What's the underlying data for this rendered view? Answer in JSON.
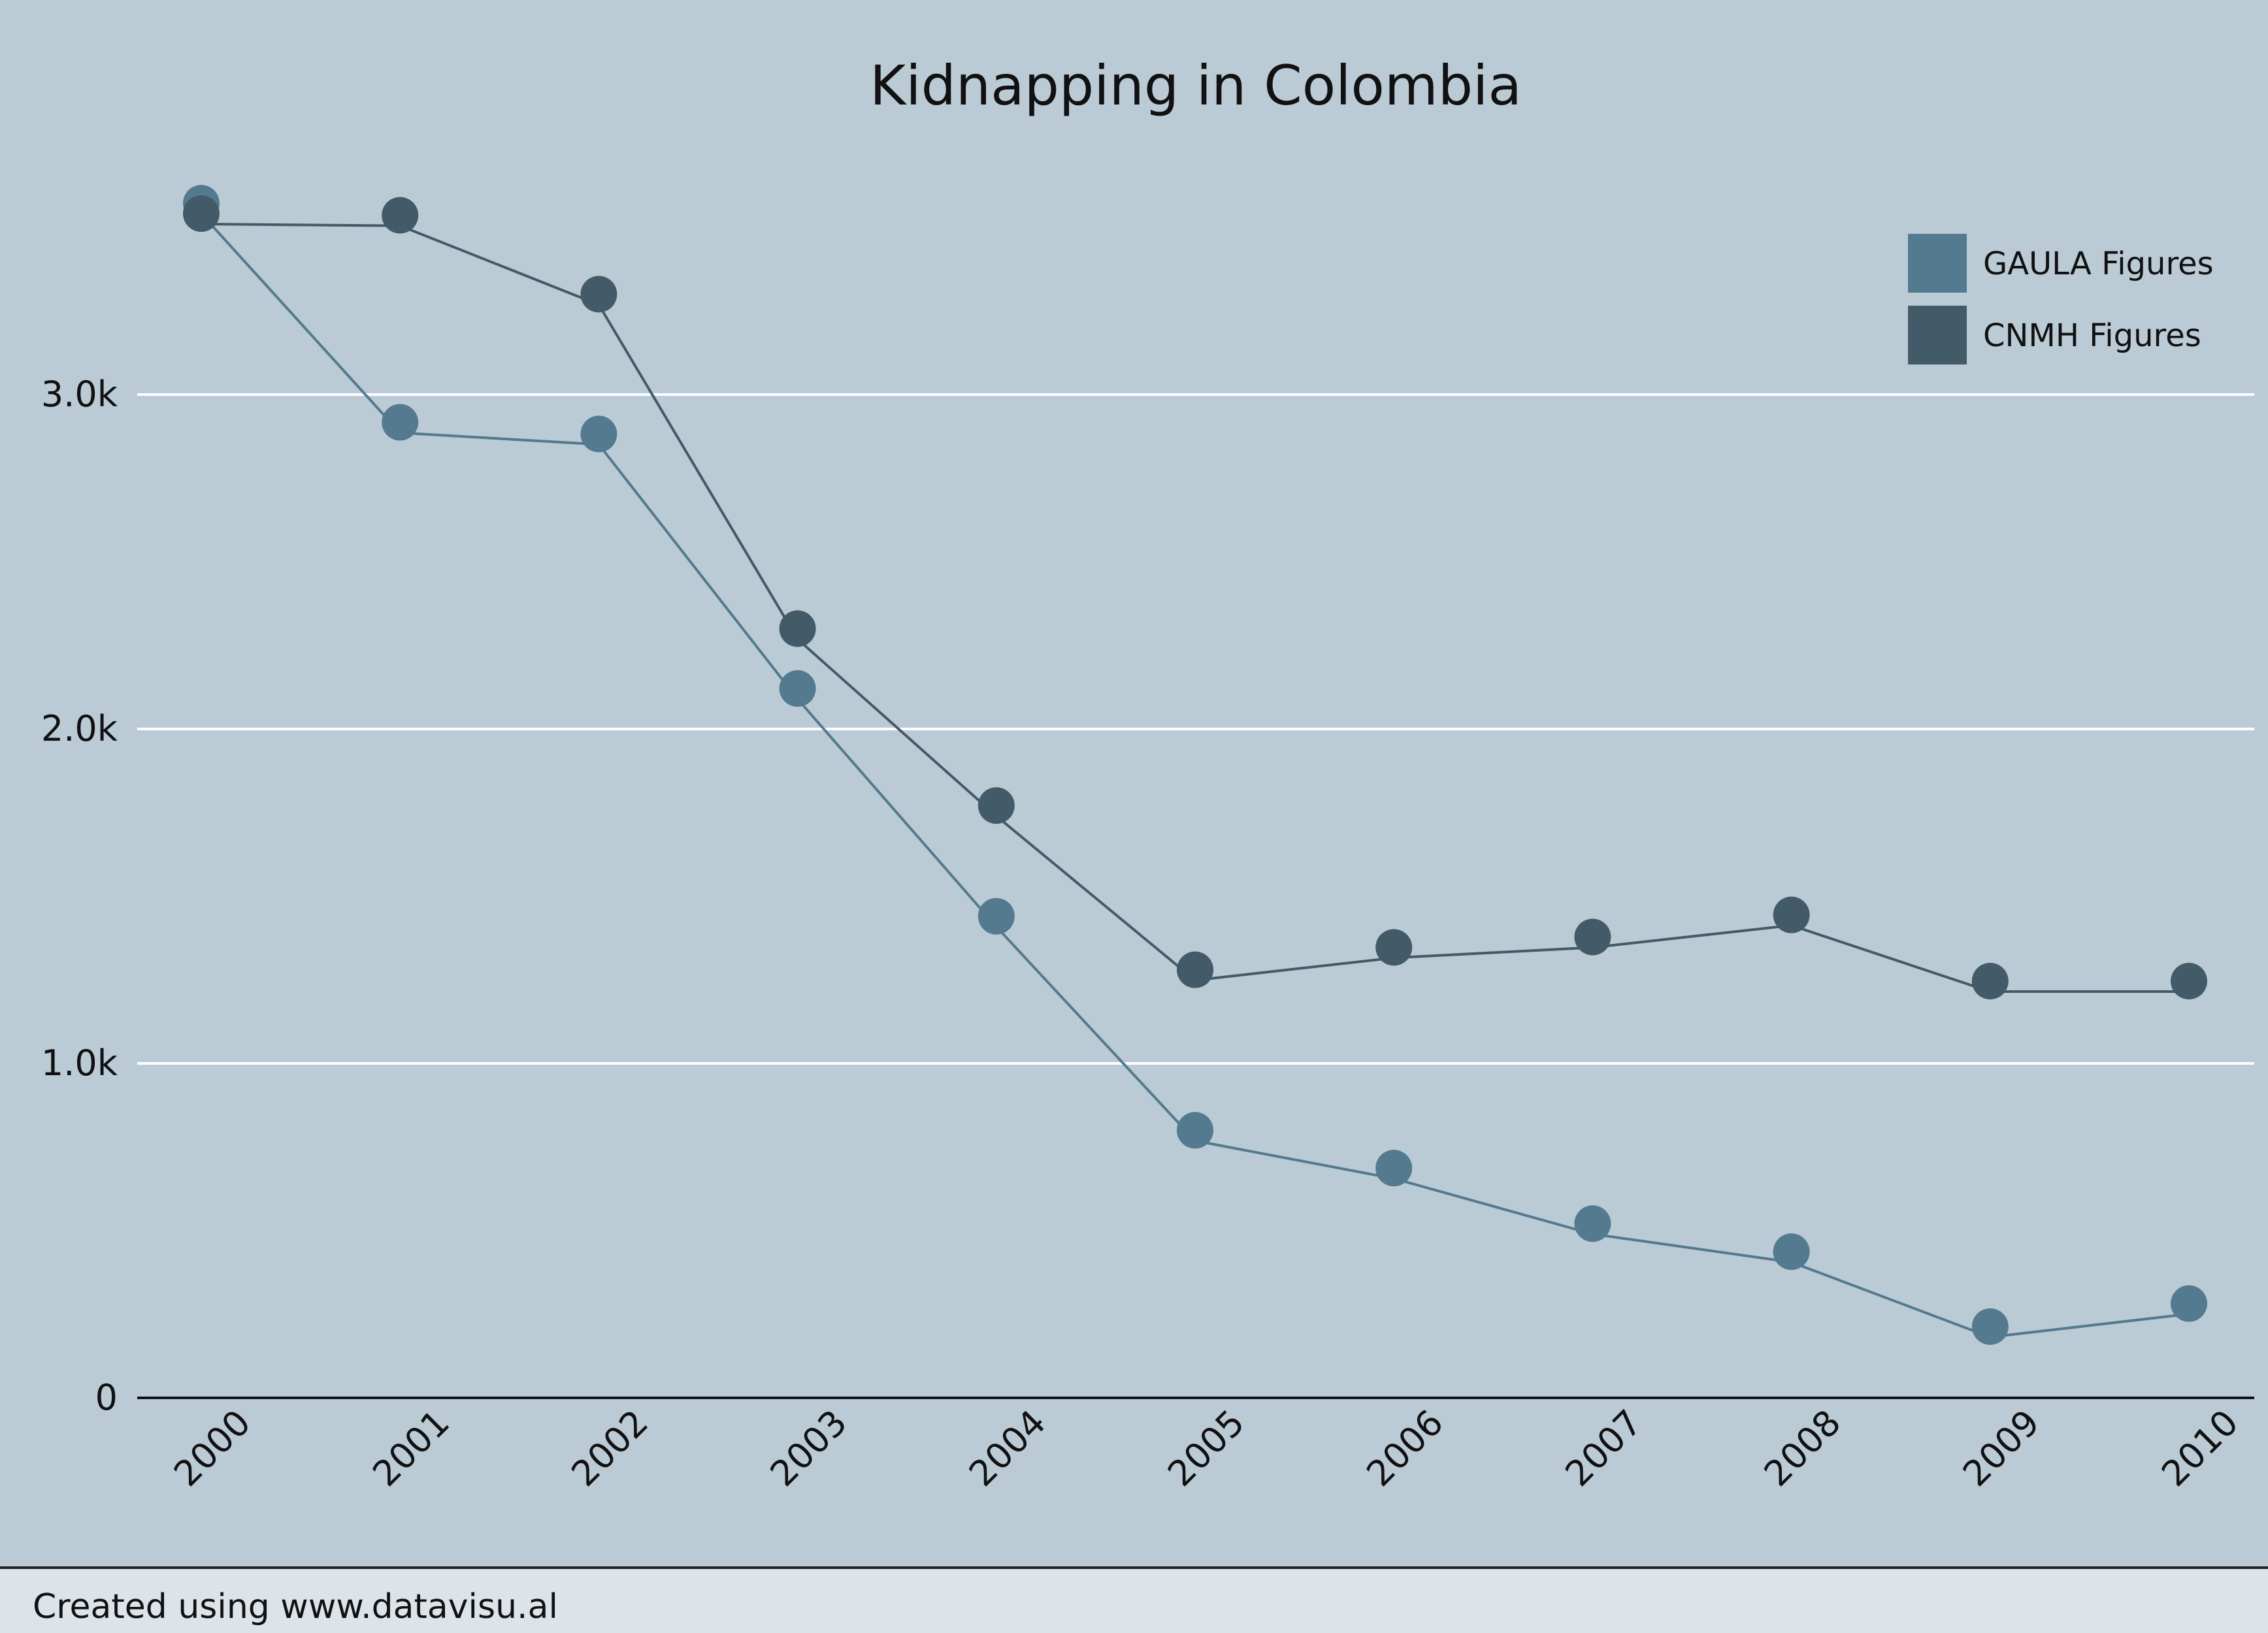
{
  "footer": {
    "credit": "Created using www.datavisu.al"
  },
  "colors": {
    "background": "#bbcbd5",
    "gridline": "#ffffff",
    "axis": "#111111",
    "gaula": "#537a8e",
    "cnmh": "#435b68",
    "footer_bg": "#dce4ea"
  },
  "chart_data": {
    "type": "line",
    "title": "Kidnapping in Colombia",
    "xlabel": "",
    "ylabel": "",
    "x": [
      "2000",
      "2001",
      "2002",
      "2003",
      "2004",
      "2005",
      "2006",
      "2007",
      "2008",
      "2009",
      "2010"
    ],
    "ylim": [
      0,
      3700
    ],
    "yticks": [
      0,
      1000,
      2000,
      3000
    ],
    "ytick_labels": [
      "0",
      "1.0k",
      "2.0k",
      "3.0k"
    ],
    "grid": true,
    "legend": "top-right",
    "series": [
      {
        "name": "GAULA Figures",
        "color": "#537a8e",
        "values": [
          3572,
          2917,
          2882,
          2121,
          1440,
          800,
          687,
          521,
          437,
          213,
          282
        ]
      },
      {
        "name": "CNMH Figures",
        "color": "#435b68",
        "values": [
          3541,
          3536,
          3300,
          2300,
          1771,
          1280,
          1347,
          1378,
          1444,
          1246,
          1246
        ]
      }
    ]
  }
}
